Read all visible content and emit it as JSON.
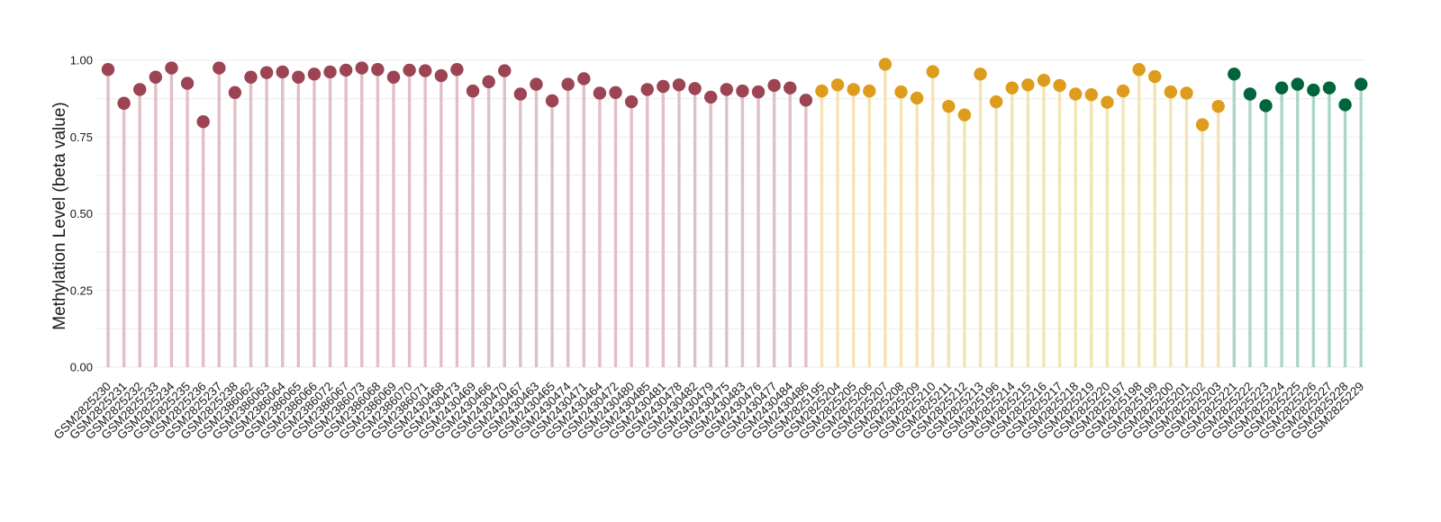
{
  "chart_data": {
    "type": "lollipop",
    "ylabel": "Methylation Level (beta value)",
    "ylim": [
      0,
      1.0
    ],
    "yticks": [
      "0.00",
      "0.25",
      "0.50",
      "0.75",
      "1.00"
    ],
    "grid": true,
    "legend": "none",
    "groups": [
      {
        "color": "#9c4354",
        "stem_color": "#dfc0c7",
        "samples": [
          {
            "x": "GSM2825230",
            "y": 0.97
          },
          {
            "x": "GSM2825231",
            "y": 0.86
          },
          {
            "x": "GSM2825232",
            "y": 0.905
          },
          {
            "x": "GSM2825233",
            "y": 0.945
          },
          {
            "x": "GSM2825234",
            "y": 0.975
          },
          {
            "x": "GSM2825235",
            "y": 0.925
          },
          {
            "x": "GSM2825236",
            "y": 0.8
          },
          {
            "x": "GSM2825237",
            "y": 0.975
          },
          {
            "x": "GSM2825238",
            "y": 0.895
          },
          {
            "x": "GSM2386062",
            "y": 0.945
          },
          {
            "x": "GSM2386063",
            "y": 0.96
          },
          {
            "x": "GSM2386064",
            "y": 0.962
          },
          {
            "x": "GSM2386065",
            "y": 0.945
          },
          {
            "x": "GSM2386066",
            "y": 0.955
          },
          {
            "x": "GSM2386072",
            "y": 0.962
          },
          {
            "x": "GSM2386067",
            "y": 0.968
          },
          {
            "x": "GSM2386073",
            "y": 0.975
          },
          {
            "x": "GSM2386068",
            "y": 0.97
          },
          {
            "x": "GSM2386069",
            "y": 0.945
          },
          {
            "x": "GSM2386070",
            "y": 0.968
          },
          {
            "x": "GSM2386071",
            "y": 0.966
          },
          {
            "x": "GSM2430468",
            "y": 0.95
          },
          {
            "x": "GSM2430473",
            "y": 0.97
          },
          {
            "x": "GSM2430469",
            "y": 0.9
          },
          {
            "x": "GSM2430466",
            "y": 0.93
          },
          {
            "x": "GSM2430470",
            "y": 0.966
          },
          {
            "x": "GSM2430467",
            "y": 0.89
          },
          {
            "x": "GSM2430463",
            "y": 0.922
          },
          {
            "x": "GSM2430465",
            "y": 0.868
          },
          {
            "x": "GSM2430474",
            "y": 0.922
          },
          {
            "x": "GSM2430471",
            "y": 0.94
          },
          {
            "x": "GSM2430464",
            "y": 0.893
          },
          {
            "x": "GSM2430472",
            "y": 0.895
          },
          {
            "x": "GSM2430480",
            "y": 0.865
          },
          {
            "x": "GSM2430485",
            "y": 0.905
          },
          {
            "x": "GSM2430481",
            "y": 0.915
          },
          {
            "x": "GSM2430478",
            "y": 0.92
          },
          {
            "x": "GSM2430482",
            "y": 0.908
          },
          {
            "x": "GSM2430479",
            "y": 0.88
          },
          {
            "x": "GSM2430475",
            "y": 0.905
          },
          {
            "x": "GSM2430483",
            "y": 0.9
          },
          {
            "x": "GSM2430476",
            "y": 0.897
          },
          {
            "x": "GSM2430477",
            "y": 0.918
          },
          {
            "x": "GSM2430484",
            "y": 0.91
          },
          {
            "x": "GSM2430486",
            "y": 0.87
          }
        ]
      },
      {
        "color": "#dd9c1c",
        "stem_color": "#f4e3b5",
        "samples": [
          {
            "x": "GSM2825195",
            "y": 0.9
          },
          {
            "x": "GSM2825204",
            "y": 0.92
          },
          {
            "x": "GSM2825205",
            "y": 0.905
          },
          {
            "x": "GSM2825206",
            "y": 0.9
          },
          {
            "x": "GSM2825207",
            "y": 0.987
          },
          {
            "x": "GSM2825208",
            "y": 0.897
          },
          {
            "x": "GSM2825209",
            "y": 0.877
          },
          {
            "x": "GSM2825210",
            "y": 0.963
          },
          {
            "x": "GSM2825211",
            "y": 0.85
          },
          {
            "x": "GSM2825212",
            "y": 0.822
          },
          {
            "x": "GSM2825213",
            "y": 0.955
          },
          {
            "x": "GSM2825196",
            "y": 0.865
          },
          {
            "x": "GSM2825214",
            "y": 0.91
          },
          {
            "x": "GSM2825215",
            "y": 0.92
          },
          {
            "x": "GSM2825216",
            "y": 0.935
          },
          {
            "x": "GSM2825217",
            "y": 0.918
          },
          {
            "x": "GSM2825218",
            "y": 0.89
          },
          {
            "x": "GSM2825219",
            "y": 0.888
          },
          {
            "x": "GSM2825220",
            "y": 0.863
          },
          {
            "x": "GSM2825197",
            "y": 0.9
          },
          {
            "x": "GSM2825198",
            "y": 0.97
          },
          {
            "x": "GSM2825199",
            "y": 0.947
          },
          {
            "x": "GSM2825200",
            "y": 0.897
          },
          {
            "x": "GSM2825201",
            "y": 0.893
          },
          {
            "x": "GSM2825202",
            "y": 0.79
          },
          {
            "x": "GSM2825203",
            "y": 0.85
          }
        ]
      },
      {
        "color": "#00643c",
        "stem_color": "#acd5c8",
        "samples": [
          {
            "x": "GSM2825221",
            "y": 0.955
          },
          {
            "x": "GSM2825222",
            "y": 0.89
          },
          {
            "x": "GSM2825223",
            "y": 0.852
          },
          {
            "x": "GSM2825224",
            "y": 0.91
          },
          {
            "x": "GSM2825225",
            "y": 0.922
          },
          {
            "x": "GSM2825226",
            "y": 0.903
          },
          {
            "x": "GSM2825227",
            "y": 0.91
          },
          {
            "x": "GSM2825228",
            "y": 0.855
          },
          {
            "x": "GSM2825229",
            "y": 0.922
          }
        ]
      }
    ]
  }
}
